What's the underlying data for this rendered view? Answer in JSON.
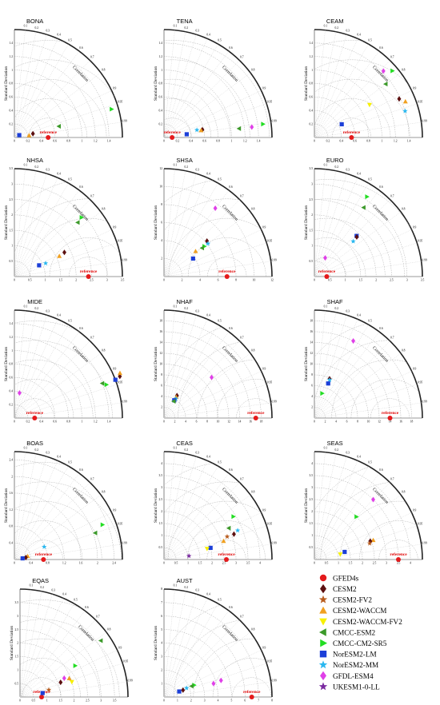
{
  "figure": {
    "axis_label_y": "Standard Deviation",
    "correlation_label": "Correlation",
    "reference_label": "reference"
  },
  "legend": [
    {
      "name": "GFED4s",
      "color": "#e41a1c",
      "shape": "circle"
    },
    {
      "name": "CESM2",
      "color": "#5c1010",
      "shape": "diamond"
    },
    {
      "name": "CESM2-FV2",
      "color": "#b85c1e",
      "shape": "star"
    },
    {
      "name": "CESM2-WACCM",
      "color": "#f0a020",
      "shape": "triangle-up"
    },
    {
      "name": "CESM2-WACCM-FV2",
      "color": "#f7f000",
      "shape": "triangle-down"
    },
    {
      "name": "CMCC-ESM2",
      "color": "#3c9a2a",
      "shape": "triangle-left"
    },
    {
      "name": "CMCC-CM2-SR5",
      "color": "#22dd22",
      "shape": "triangle-right"
    },
    {
      "name": "NorESM2-LM",
      "color": "#1c3fd8",
      "shape": "square"
    },
    {
      "name": "NorESM2-MM",
      "color": "#2ab8f0",
      "shape": "star"
    },
    {
      "name": "GFDL-ESM4",
      "color": "#e040e8",
      "shape": "diamond"
    },
    {
      "name": "UKESM1-0-LL",
      "color": "#7a2aa0",
      "shape": "star"
    }
  ],
  "chart_data": [
    {
      "type": "scatter",
      "title": "BONA",
      "max": 1.6,
      "ticks": [
        0,
        0.2,
        0.4,
        0.6,
        0.8,
        1,
        1.2,
        1.4
      ],
      "ref": 0.5,
      "points": [
        {
          "m": "CMCC-CM2-SR5",
          "sd": 1.5,
          "r": 0.96
        },
        {
          "m": "CMCC-ESM2",
          "sd": 0.68,
          "r": 0.97
        },
        {
          "m": "CESM2",
          "sd": 0.28,
          "r": 0.98
        },
        {
          "m": "CESM2-WACCM",
          "sd": 0.22,
          "r": 0.99
        },
        {
          "m": "NorESM2-LM",
          "sd": 0.08,
          "r": 0.9
        }
      ]
    },
    {
      "type": "scatter",
      "title": "TENA",
      "max": 1.6,
      "ticks": [
        0,
        0.2,
        0.4,
        0.6,
        0.8,
        1,
        1.2,
        1.4
      ],
      "ref": 0.12,
      "points": [
        {
          "m": "CMCC-CM2-SR5",
          "sd": 1.48,
          "r": 0.991
        },
        {
          "m": "GFDL-ESM4",
          "sd": 1.31,
          "r": 0.993
        },
        {
          "m": "CMCC-ESM2",
          "sd": 1.12,
          "r": 0.993
        },
        {
          "m": "CESM2",
          "sd": 0.58,
          "r": 0.98
        },
        {
          "m": "CESM2-WACCM",
          "sd": 0.56,
          "r": 0.982
        },
        {
          "m": "NorESM2-MM",
          "sd": 0.5,
          "r": 0.975
        },
        {
          "m": "NorESM2-LM",
          "sd": 0.34,
          "r": 0.99
        }
      ]
    },
    {
      "type": "scatter",
      "title": "CEAM",
      "max": 1.6,
      "ticks": [
        0,
        0.2,
        0.4,
        0.6,
        0.8,
        1,
        1.2,
        1.4
      ],
      "ref": 0.55,
      "points": [
        {
          "m": "CMCC-CM2-SR5",
          "sd": 1.52,
          "r": 0.76
        },
        {
          "m": "GFDL-ESM4",
          "sd": 1.42,
          "r": 0.72
        },
        {
          "m": "CESM2",
          "sd": 1.38,
          "r": 0.91
        },
        {
          "m": "CESM2-WACCM",
          "sd": 1.45,
          "r": 0.93
        },
        {
          "m": "CMCC-ESM2",
          "sd": 1.32,
          "r": 0.8
        },
        {
          "m": "NorESM2-MM",
          "sd": 1.4,
          "r": 0.96
        },
        {
          "m": "CESM2-WACCM-FV2",
          "sd": 0.95,
          "r": 0.86
        },
        {
          "m": "NorESM2-LM",
          "sd": 0.45,
          "r": 0.9
        }
      ]
    },
    {
      "type": "scatter",
      "title": "NHSA",
      "max": 3.5,
      "ticks": [
        0,
        0.5,
        1,
        1.5,
        2,
        2.5,
        3,
        3.5
      ],
      "ref": 2.4,
      "points": [
        {
          "m": "CMCC-CM2-SR5",
          "sd": 2.9,
          "r": 0.75
        },
        {
          "m": "CMCC-ESM2",
          "sd": 2.7,
          "r": 0.76
        },
        {
          "m": "CESM2",
          "sd": 1.8,
          "r": 0.9
        },
        {
          "m": "CESM2-WACCM",
          "sd": 1.6,
          "r": 0.91
        },
        {
          "m": "NorESM2-MM",
          "sd": 1.1,
          "r": 0.92
        },
        {
          "m": "NorESM2-LM",
          "sd": 0.88,
          "r": 0.91
        }
      ]
    },
    {
      "type": "scatter",
      "title": "SHSA",
      "max": 12,
      "ticks": [
        0,
        2,
        4,
        6,
        8,
        10,
        12
      ],
      "ref": 7,
      "points": [
        {
          "m": "GFDL-ESM4",
          "sd": 9.5,
          "r": 0.6
        },
        {
          "m": "CESM2",
          "sd": 6.2,
          "r": 0.77
        },
        {
          "m": "NorESM2-MM",
          "sd": 6.1,
          "r": 0.8
        },
        {
          "m": "CMCC-CM2-SR5",
          "sd": 5.6,
          "r": 0.8
        },
        {
          "m": "CMCC-ESM2",
          "sd": 5.3,
          "r": 0.8
        },
        {
          "m": "CESM2-WACCM",
          "sd": 4.5,
          "r": 0.78
        },
        {
          "m": "NorESM2-LM",
          "sd": 3.8,
          "r": 0.85
        }
      ]
    },
    {
      "type": "scatter",
      "title": "EURO",
      "max": 3.5,
      "ticks": [
        0,
        0.5,
        1,
        1.5,
        2,
        2.5,
        3,
        3.5
      ],
      "ref": 0.4,
      "points": [
        {
          "m": "CMCC-CM2-SR5",
          "sd": 3.1,
          "r": 0.55
        },
        {
          "m": "CMCC-ESM2",
          "sd": 2.75,
          "r": 0.58
        },
        {
          "m": "NorESM2-LM",
          "sd": 1.9,
          "r": 0.72
        },
        {
          "m": "CESM2",
          "sd": 1.88,
          "r": 0.73
        },
        {
          "m": "NorESM2-MM",
          "sd": 1.7,
          "r": 0.74
        },
        {
          "m": "GFDL-ESM4",
          "sd": 0.7,
          "r": 0.5
        }
      ]
    },
    {
      "type": "scatter",
      "title": "MIDE",
      "max": 1.6,
      "ticks": [
        0,
        0.2,
        0.4,
        0.6,
        0.8,
        1,
        1.2,
        1.4
      ],
      "ref": 0.3,
      "points": [
        {
          "m": "CESM2",
          "sd": 1.68,
          "r": 0.93
        },
        {
          "m": "CESM2-WACCM",
          "sd": 1.7,
          "r": 0.92
        },
        {
          "m": "NorESM2-LM",
          "sd": 1.6,
          "r": 0.935
        },
        {
          "m": "CMCC-CM2-SR5",
          "sd": 1.45,
          "r": 0.94
        },
        {
          "m": "CMCC-ESM2",
          "sd": 1.4,
          "r": 0.93
        },
        {
          "m": "GFDL-ESM4",
          "sd": 0.38,
          "r": 0.2
        }
      ]
    },
    {
      "type": "scatter",
      "title": "NHAF",
      "max": 20,
      "ticks": [
        0,
        2,
        4,
        6,
        8,
        10,
        12,
        14,
        16,
        18
      ],
      "ref": 17,
      "points": [
        {
          "m": "GFDL-ESM4",
          "sd": 11.6,
          "r": 0.76
        },
        {
          "m": "CESM2",
          "sd": 4.8,
          "r": 0.5
        },
        {
          "m": "CESM2-WACCM",
          "sd": 4.5,
          "r": 0.5
        },
        {
          "m": "NorESM2-MM",
          "sd": 4.2,
          "r": 0.52
        },
        {
          "m": "NorESM2-LM",
          "sd": 3.8,
          "r": 0.5
        },
        {
          "m": "CMCC-ESM2",
          "sd": 3.6,
          "r": 0.5
        }
      ]
    },
    {
      "type": "scatter",
      "title": "SHAF",
      "max": 20,
      "ticks": [
        0,
        2,
        4,
        6,
        8,
        10,
        12,
        14,
        16,
        18
      ],
      "ref": 14,
      "points": [
        {
          "m": "GFDL-ESM4",
          "sd": 16,
          "r": 0.45
        },
        {
          "m": "CESM2",
          "sd": 7.8,
          "r": 0.36
        },
        {
          "m": "NorESM2-MM",
          "sd": 7.6,
          "r": 0.37
        },
        {
          "m": "NorESM2-LM",
          "sd": 6.9,
          "r": 0.37
        },
        {
          "m": "CMCC-CM2-SR5",
          "sd": 4.8,
          "r": 0.3
        }
      ]
    },
    {
      "type": "scatter",
      "title": "BOAS",
      "max": 2.6,
      "ticks": [
        0,
        0.4,
        0.8,
        1.2,
        1.6,
        2,
        2.4
      ],
      "ref": 0.7,
      "points": [
        {
          "m": "CMCC-CM2-SR5",
          "sd": 2.28,
          "r": 0.93
        },
        {
          "m": "CMCC-ESM2",
          "sd": 2.05,
          "r": 0.95
        },
        {
          "m": "NorESM2-MM",
          "sd": 0.78,
          "r": 0.92
        },
        {
          "m": "CESM2-WACCM",
          "sd": 0.33,
          "r": 0.97
        },
        {
          "m": "CESM2",
          "sd": 0.28,
          "r": 0.985
        },
        {
          "m": "NorESM2-LM",
          "sd": 0.2,
          "r": 0.99
        }
      ]
    },
    {
      "type": "scatter",
      "title": "CEAS",
      "max": 4.5,
      "ticks": [
        0,
        0.5,
        1,
        1.5,
        2,
        2.5,
        3,
        3.5,
        4
      ],
      "ref": 2.6,
      "points": [
        {
          "m": "CMCC-CM2-SR5",
          "sd": 3.4,
          "r": 0.85
        },
        {
          "m": "NorESM2-MM",
          "sd": 3.3,
          "r": 0.93
        },
        {
          "m": "CMCC-ESM2",
          "sd": 3.0,
          "r": 0.9
        },
        {
          "m": "CESM2",
          "sd": 3.1,
          "r": 0.94
        },
        {
          "m": "CESM2-FV2",
          "sd": 2.8,
          "r": 0.94
        },
        {
          "m": "CESM2-WACCM",
          "sd": 2.6,
          "r": 0.955
        },
        {
          "m": "NorESM2-LM",
          "sd": 2.0,
          "r": 0.97
        },
        {
          "m": "CESM2-WACCM-FV2",
          "sd": 1.85,
          "r": 0.97
        },
        {
          "m": "UKESM1-0-LL",
          "sd": 1.05,
          "r": 0.99
        }
      ]
    },
    {
      "type": "scatter",
      "title": "SEAS",
      "max": 4.5,
      "ticks": [
        0,
        0.5,
        1,
        1.5,
        2,
        2.5,
        3,
        3.5,
        4
      ],
      "ref": 3.5,
      "points": [
        {
          "m": "GFDL-ESM4",
          "sd": 3.5,
          "r": 0.7
        },
        {
          "m": "CMCC-CM2-SR5",
          "sd": 2.5,
          "r": 0.7
        },
        {
          "m": "CESM2-WACCM",
          "sd": 2.58,
          "r": 0.95
        },
        {
          "m": "CESM2",
          "sd": 2.45,
          "r": 0.95
        },
        {
          "m": "CESM2-FV2",
          "sd": 2.4,
          "r": 0.96
        },
        {
          "m": "NorESM2-LM",
          "sd": 1.3,
          "r": 0.97
        },
        {
          "m": "CESM2-WACCM-FV2",
          "sd": 1.1,
          "r": 0.98
        }
      ]
    },
    {
      "type": "scatter",
      "title": "EQAS",
      "max": 4,
      "ticks": [
        0,
        0.5,
        1,
        1.5,
        2,
        2.5,
        3,
        3.5
      ],
      "ref": 0.8,
      "points": [
        {
          "m": "CMCC-ESM2",
          "sd": 3.65,
          "r": 0.82
        },
        {
          "m": "CMCC-CM2-SR5",
          "sd": 2.35,
          "r": 0.87
        },
        {
          "m": "CESM2-WACCM-FV2",
          "sd": 2.0,
          "r": 0.96
        },
        {
          "m": "CESM2-WACCM",
          "sd": 1.95,
          "r": 0.935
        },
        {
          "m": "GFDL-ESM4",
          "sd": 1.78,
          "r": 0.92
        },
        {
          "m": "CESM2",
          "sd": 1.6,
          "r": 0.94
        },
        {
          "m": "CESM2-FV2",
          "sd": 1.1,
          "r": 0.97
        },
        {
          "m": "NorESM2-LM",
          "sd": 0.85,
          "r": 0.985
        }
      ]
    },
    {
      "type": "scatter",
      "title": "AUST",
      "max": 8,
      "ticks": [
        0,
        1,
        2,
        3,
        4,
        5,
        6,
        7,
        8
      ],
      "ref": 6.5,
      "points": [
        {
          "m": "GFDL-ESM4",
          "sd": 4.4,
          "r": 0.96
        },
        {
          "m": "GFDL-ESM4",
          "sd": 3.8,
          "r": 0.965
        },
        {
          "m": "CMCC-CM2-SR5",
          "sd": 2.4,
          "r": 0.93
        },
        {
          "m": "CMCC-ESM2",
          "sd": 2.2,
          "r": 0.93
        },
        {
          "m": "NorESM2-MM",
          "sd": 1.8,
          "r": 0.93
        },
        {
          "m": "CESM2",
          "sd": 1.5,
          "r": 0.94
        },
        {
          "m": "NorESM2-LM",
          "sd": 1.2,
          "r": 0.94
        }
      ]
    }
  ]
}
